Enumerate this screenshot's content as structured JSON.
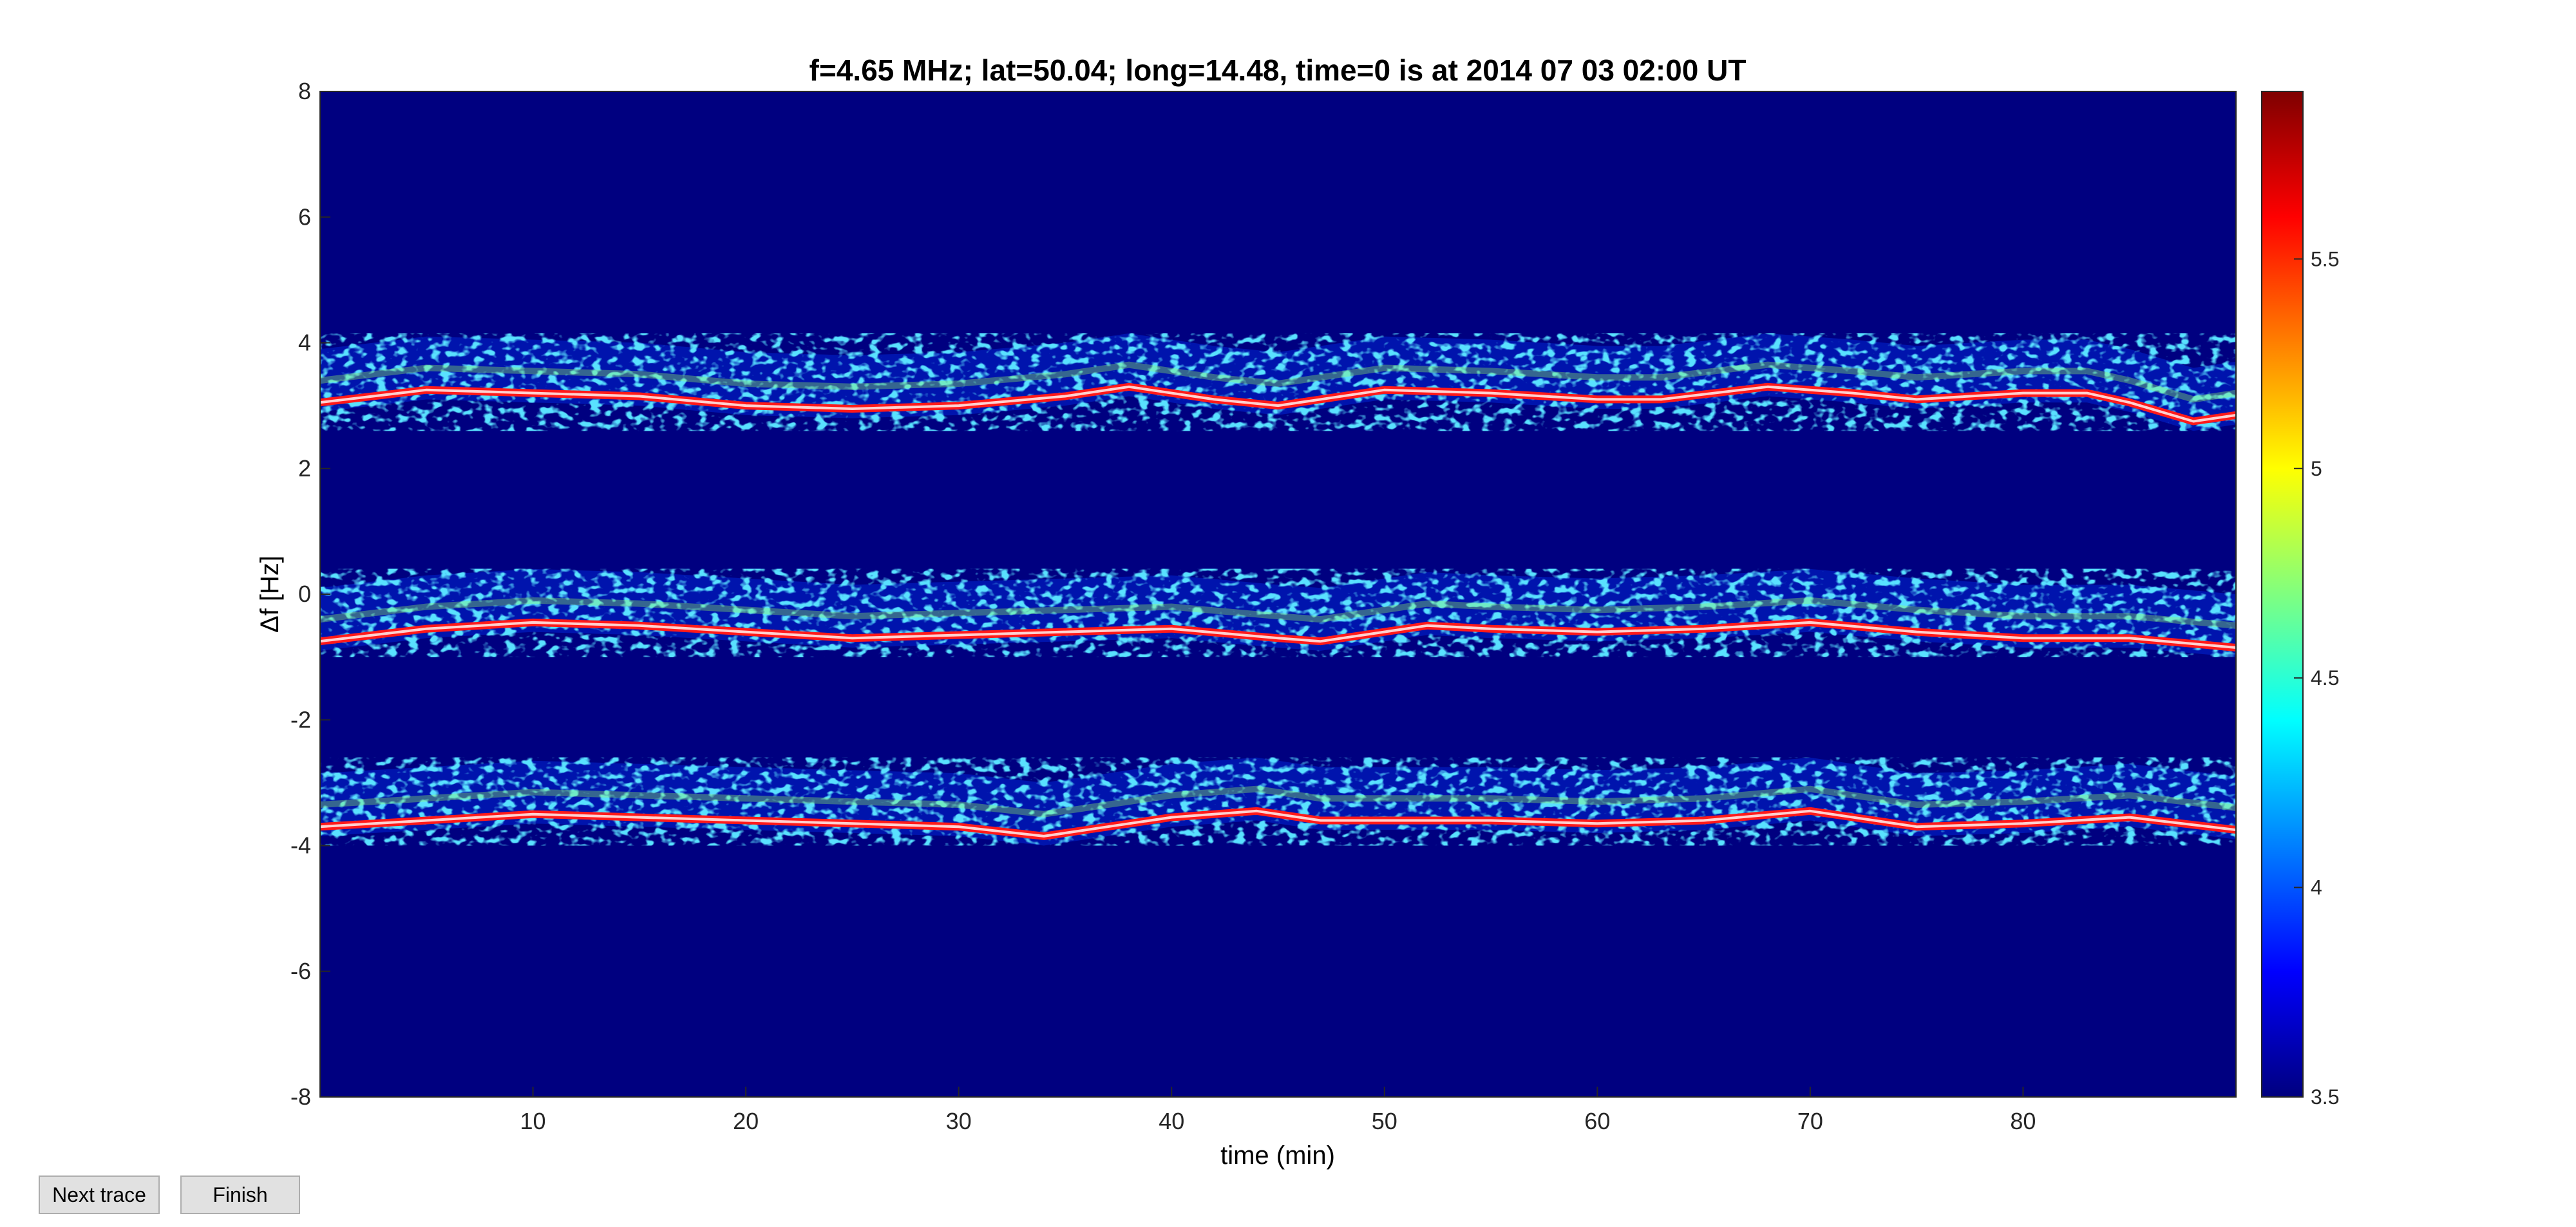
{
  "chart_data": {
    "type": "heatmap",
    "title": "f=4.65 MHz;  lat=50.04; long=14.48, time=0 is at 2014 07 03 02:00 UT",
    "xlabel": "time (min)",
    "ylabel": "Δf [Hz]",
    "xlim": [
      0,
      90
    ],
    "ylim": [
      -8,
      8
    ],
    "xticks": [
      10,
      20,
      30,
      40,
      50,
      60,
      70,
      80
    ],
    "yticks": [
      -8,
      -6,
      -4,
      -2,
      0,
      2,
      4,
      6,
      8
    ],
    "colorbar": {
      "range": [
        3.5,
        5.9
      ],
      "ticks": [
        3.5,
        4,
        4.5,
        5,
        5.5
      ],
      "colormap": "jet"
    },
    "grid": false,
    "traces": [
      {
        "t": [
          0,
          5,
          10,
          15,
          20,
          25,
          30,
          35,
          38,
          42,
          45,
          50,
          55,
          60,
          63,
          68,
          72,
          75,
          80,
          83,
          85,
          88,
          90
        ],
        "df": [
          3.05,
          3.25,
          3.2,
          3.15,
          3.0,
          2.95,
          3.0,
          3.15,
          3.3,
          3.1,
          3.0,
          3.25,
          3.2,
          3.1,
          3.1,
          3.3,
          3.2,
          3.1,
          3.2,
          3.2,
          3.05,
          2.75,
          2.85
        ]
      },
      {
        "t": [
          0,
          5,
          10,
          15,
          20,
          25,
          30,
          35,
          40,
          45,
          47,
          52,
          55,
          60,
          65,
          70,
          75,
          80,
          85,
          90
        ],
        "df": [
          -0.75,
          -0.55,
          -0.45,
          -0.5,
          -0.6,
          -0.7,
          -0.65,
          -0.6,
          -0.55,
          -0.7,
          -0.75,
          -0.5,
          -0.55,
          -0.6,
          -0.55,
          -0.45,
          -0.6,
          -0.7,
          -0.7,
          -0.85
        ]
      },
      {
        "t": [
          0,
          5,
          10,
          15,
          20,
          25,
          30,
          34,
          37,
          40,
          44,
          47,
          50,
          55,
          60,
          65,
          70,
          75,
          80,
          85,
          90
        ],
        "df": [
          -3.7,
          -3.6,
          -3.5,
          -3.55,
          -3.6,
          -3.65,
          -3.7,
          -3.85,
          -3.7,
          -3.55,
          -3.45,
          -3.6,
          -3.6,
          -3.6,
          -3.65,
          -3.6,
          -3.45,
          -3.7,
          -3.65,
          -3.55,
          -3.75
        ]
      }
    ]
  },
  "buttons": {
    "next_label": "Next trace",
    "finish_label": "Finish"
  },
  "colors": {
    "background": "#000080",
    "trace": "#ff1a1a",
    "trace_core": "#ffd0d0"
  }
}
